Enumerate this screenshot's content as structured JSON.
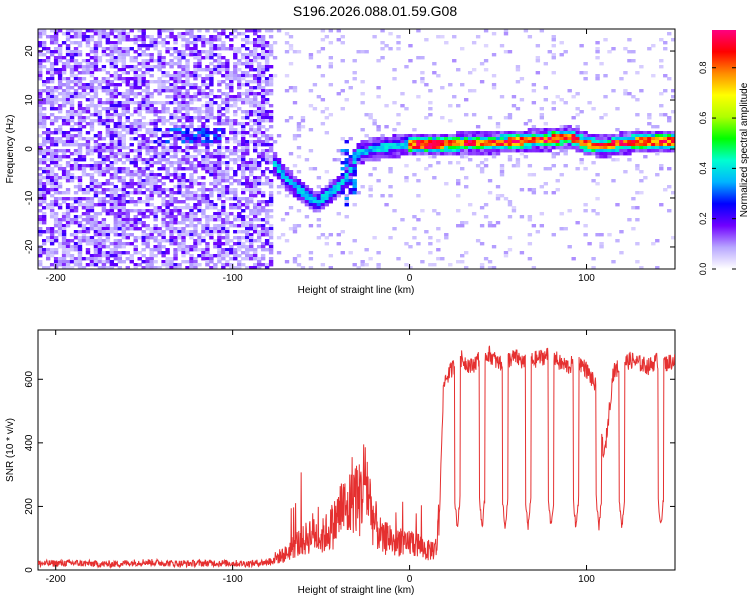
{
  "title": "S196.2026.088.01.59.G08",
  "chart_data": [
    {
      "type": "heatmap",
      "xlabel": "Height of straight line (km)",
      "ylabel": "Frequency (Hz)",
      "xlim": [
        -210,
        150
      ],
      "ylim": [
        -24.5,
        24.5
      ],
      "xticks": [
        -200,
        -100,
        0,
        100
      ],
      "xtick_labels": [
        "-200",
        "-100",
        "0",
        "100"
      ],
      "yticks": [
        -20,
        -10,
        0,
        10,
        20
      ],
      "ytick_labels": [
        "-20",
        "-10",
        "0",
        "10",
        "20"
      ],
      "noise_region_end_km": -78,
      "ridge": {
        "x": [
          -90,
          -80,
          -70,
          -60,
          -52,
          -45,
          -38,
          -34,
          -30,
          -25,
          -20,
          -10,
          0,
          20,
          40,
          60,
          80,
          90,
          100,
          110,
          120,
          130,
          150
        ],
        "y": [
          1,
          -1,
          -6,
          -9,
          -11,
          -9,
          -7,
          -5,
          -1,
          -0.5,
          0,
          0.5,
          1,
          1,
          1.2,
          1.5,
          2,
          2.5,
          1,
          0.5,
          1.2,
          1.5,
          1.5
        ]
      },
      "colorbar": {
        "label": "Normalized spectral amplitude",
        "range": [
          0,
          0.95
        ],
        "ticks": [
          0,
          0.2,
          0.4,
          0.6,
          0.8
        ],
        "tick_labels": [
          "0.0",
          "0.2",
          "0.4",
          "0.6",
          "0.8"
        ],
        "colormap": [
          "#ffffff",
          "#b8a6ff",
          "#7000ff",
          "#0000ff",
          "#00b4ff",
          "#00ffd0",
          "#00ff00",
          "#b0ff00",
          "#ffff00",
          "#ff8c00",
          "#ff0000",
          "#ff0080"
        ]
      }
    },
    {
      "type": "line",
      "xlabel": "Height of straight line (km)",
      "ylabel": "SNR (10 * v/v)",
      "xlim": [
        -210,
        150
      ],
      "ylim": [
        0,
        755
      ],
      "xticks": [
        -200,
        -100,
        0,
        100
      ],
      "xtick_labels": [
        "-200",
        "-100",
        "0",
        "100"
      ],
      "yticks": [
        0,
        200,
        400,
        600
      ],
      "ytick_labels": [
        "0",
        "200",
        "400",
        "600"
      ],
      "series": [
        {
          "name": "SNR",
          "color": "#e53030",
          "x": [
            -210,
            -190,
            -170,
            -150,
            -130,
            -110,
            -90,
            -80,
            -75,
            -70,
            -65,
            -60,
            -55,
            -50,
            -45,
            -42,
            -38,
            -35,
            -32,
            -28,
            -25,
            -22,
            -20,
            -18,
            -15,
            -12,
            -8,
            -5,
            -2,
            0,
            5,
            10,
            15,
            17,
            18,
            19,
            20,
            25,
            27,
            30,
            35,
            40,
            45,
            50,
            55,
            60,
            65,
            70,
            75,
            80,
            85,
            90,
            95,
            100,
            105,
            107,
            110,
            115,
            120,
            125,
            130,
            135,
            140,
            145,
            150
          ],
          "y": [
            20,
            22,
            18,
            25,
            20,
            22,
            20,
            25,
            40,
            50,
            80,
            90,
            120,
            100,
            130,
            150,
            200,
            180,
            250,
            220,
            300,
            200,
            150,
            130,
            90,
            110,
            80,
            100,
            70,
            90,
            80,
            60,
            70,
            180,
            400,
            550,
            600,
            640,
            680,
            660,
            640,
            670,
            680,
            650,
            660,
            670,
            650,
            660,
            670,
            680,
            650,
            640,
            660,
            630,
            580,
            500,
            350,
            620,
            650,
            660,
            650,
            640,
            660,
            650,
            660
          ]
        }
      ]
    }
  ]
}
